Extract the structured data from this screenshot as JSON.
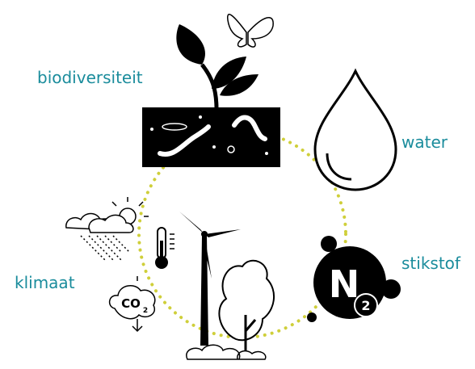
{
  "labels": {
    "biodiversity": "biodiversiteit",
    "water": "water",
    "nitrogen": "stikstof",
    "climate": "klimaat"
  },
  "icons": {
    "co2": {
      "text": "CO",
      "subscript": "2"
    },
    "n2": {
      "text": "N",
      "subscript": "2"
    }
  }
}
